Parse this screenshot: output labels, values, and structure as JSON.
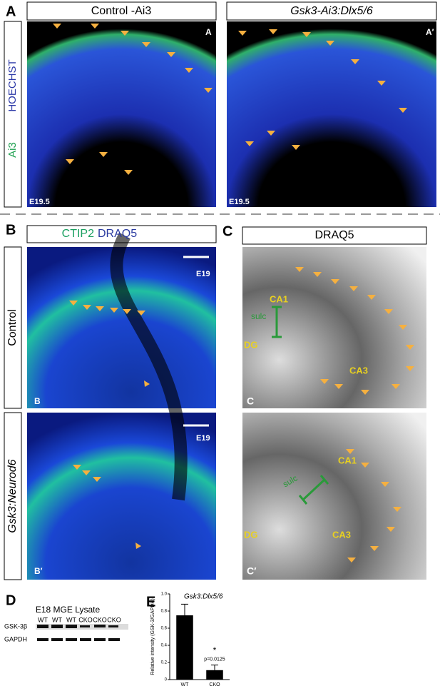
{
  "panel_a": {
    "label": "A",
    "titles": [
      "Control -Ai3",
      "Gsk3-Ai3:Dlx5/6"
    ],
    "stain": [
      "HOECHST",
      "Ai3"
    ],
    "image_labels": [
      "A",
      "A′"
    ],
    "ages": [
      "E19.5",
      "E19.5"
    ]
  },
  "panel_b": {
    "label": "B",
    "stain": [
      "CTIP2",
      "DRAQ5"
    ],
    "rows": [
      "Control",
      "Gsk3:Neurod6"
    ],
    "image_labels": [
      "B",
      "B′"
    ],
    "ages": [
      "E19",
      "E19"
    ]
  },
  "panel_c": {
    "label": "C",
    "title": "DRAQ5",
    "image_labels": [
      "C",
      "C′"
    ],
    "regions": [
      "CA1",
      "sulc",
      "DG",
      "CA3"
    ]
  },
  "panel_d": {
    "label": "D",
    "title": "E18 MGE Lysate",
    "lanes": [
      "WT",
      "WT",
      "WT",
      "CKO",
      "CKO",
      "CKO"
    ],
    "bands": [
      "GSK-3β",
      "GAPDH"
    ]
  },
  "panel_e": {
    "label": "E",
    "chart_data": {
      "type": "bar",
      "title": "Gsk3:Dlx5/6",
      "y_label": "Relative intensity (GSK-3/GAPDH)",
      "categories": [
        "WT",
        "CKO"
      ],
      "values": [
        0.75,
        0.11
      ],
      "errors": [
        0.13,
        0.06
      ],
      "color": "#000000",
      "ylim": [
        0,
        1
      ],
      "yticks": [
        0,
        0.2,
        0.4,
        0.6,
        0.8,
        {
          "value": 1,
          "label": "1.0"
        }
      ],
      "significance": "*",
      "p_value_label": "p=0.0125"
    }
  }
}
